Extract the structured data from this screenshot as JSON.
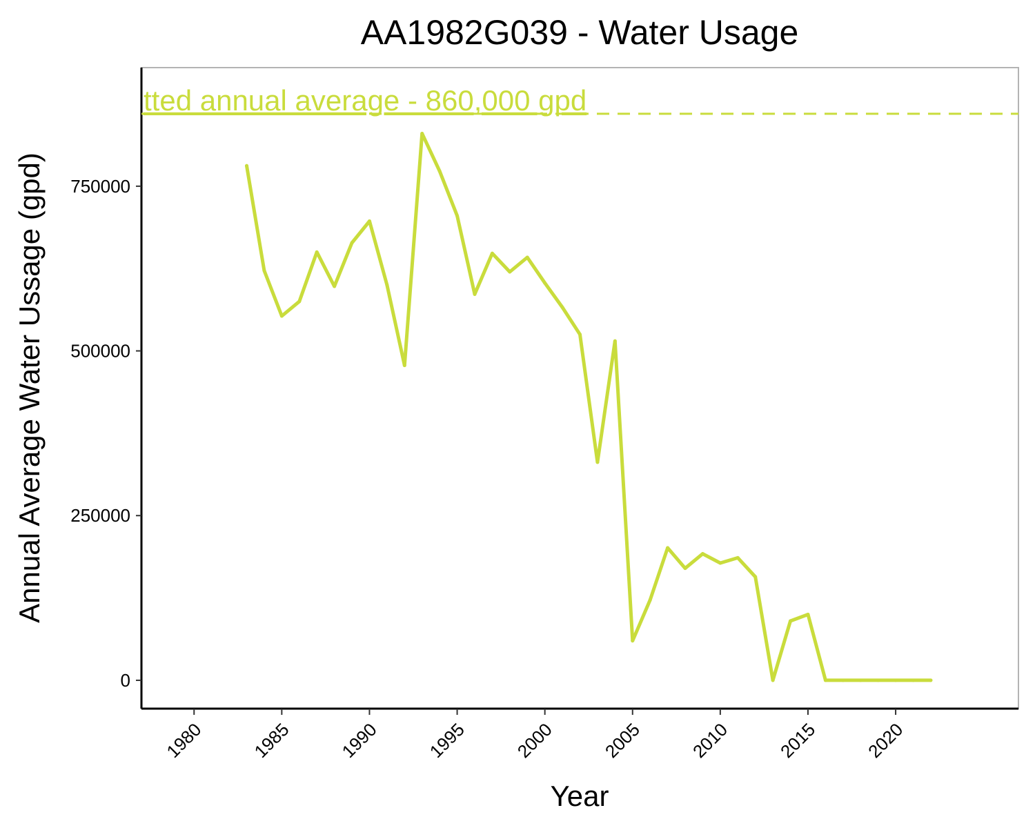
{
  "chart_data": {
    "type": "line",
    "title": "AA1982G039 - Water Usage",
    "xlabel": "Year",
    "ylabel": "Annual Average Water Ussage (gpd)",
    "xlim": [
      1977,
      2027
    ],
    "ylim": [
      -43000,
      930000
    ],
    "x_ticks": [
      1980,
      1985,
      1990,
      1995,
      2000,
      2005,
      2010,
      2015,
      2020
    ],
    "y_ticks": [
      0,
      250000,
      500000,
      750000
    ],
    "y_tick_labels": [
      "0",
      "250000",
      "500000",
      "750000"
    ],
    "grid": false,
    "colors": {
      "series": "#c9dc3c",
      "axis": "#000000",
      "frame": "#b3b3b3"
    },
    "series": [
      {
        "x": [
          1983,
          1984,
          1985,
          1986,
          1987,
          1988,
          1989,
          1990,
          1991,
          1992,
          1993,
          1994,
          1995,
          1996,
          1997,
          1998,
          1999,
          2000,
          2001,
          2002,
          2003,
          2004,
          2005,
          2006,
          2007,
          2008,
          2009,
          2010,
          2011,
          2012,
          2013,
          2014,
          2015,
          2016,
          2017,
          2018,
          2019,
          2020,
          2021,
          2022
        ],
        "values": [
          781000,
          622000,
          553000,
          575000,
          650000,
          598000,
          664000,
          697000,
          600000,
          478000,
          830000,
          773000,
          705000,
          586000,
          648000,
          620000,
          642000,
          603000,
          566000,
          525000,
          331000,
          515000,
          60000,
          122000,
          201000,
          170000,
          192000,
          178000,
          186000,
          157000,
          0,
          90000,
          100000,
          0,
          0,
          0,
          0,
          0,
          0,
          0
        ]
      }
    ],
    "reference_line": {
      "value": 860000,
      "label": "tted annual average - 860,000 gpd",
      "style": "dashed"
    }
  }
}
